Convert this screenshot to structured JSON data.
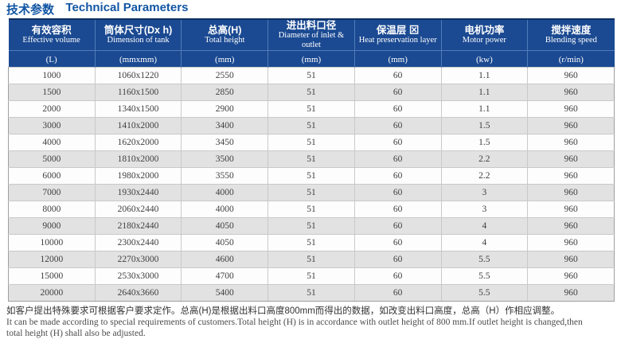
{
  "title": {
    "cn": "技术参数",
    "en": "Technical Parameters"
  },
  "colors": {
    "title_blue": "#1256a4",
    "header_bg": "#1b4a92",
    "header_top_border": "#0d2f62",
    "header_divider": "#4f7cba",
    "row_stripe_gray": "#e2e2e2",
    "row_white": "#fdfdfd",
    "body_border": "#c9c9c9",
    "outer_border": "#9e9e9e",
    "body_text": "#3f3f3f"
  },
  "table": {
    "columns": [
      {
        "cn": "有效容积",
        "en": "Effective volume",
        "unit": "(L)"
      },
      {
        "cn": "筒体尺寸(Dx h)",
        "en": "Dimension of tank",
        "unit": "(mmxmm)"
      },
      {
        "cn": "总高(H)",
        "en": "Total height",
        "unit": "(mm)"
      },
      {
        "cn": "进出料口径",
        "en": "Diameter of inlet & outlet",
        "unit": "(mm)"
      },
      {
        "cn": "保温层 ⊠",
        "en": "Heat preservation layer",
        "unit": "(mm)"
      },
      {
        "cn": "电机功率",
        "en": "Motor power",
        "unit": "(kw)"
      },
      {
        "cn": "搅拌速度",
        "en": "Blending speed",
        "unit": "(r/min)"
      }
    ],
    "rows": [
      [
        "1000",
        "1060x1220",
        "2550",
        "51",
        "60",
        "1.1",
        "960"
      ],
      [
        "1500",
        "1160x1500",
        "2850",
        "51",
        "60",
        "1.1",
        "960"
      ],
      [
        "2000",
        "1340x1500",
        "2900",
        "51",
        "60",
        "1.1",
        "960"
      ],
      [
        "3000",
        "1410x2000",
        "3400",
        "51",
        "60",
        "1.5",
        "960"
      ],
      [
        "4000",
        "1620x2000",
        "3450",
        "51",
        "60",
        "1.5",
        "960"
      ],
      [
        "5000",
        "1810x2000",
        "3500",
        "51",
        "60",
        "2.2",
        "960"
      ],
      [
        "6000",
        "1980x2000",
        "3550",
        "51",
        "60",
        "2.2",
        "960"
      ],
      [
        "7000",
        "1930x2440",
        "4000",
        "51",
        "60",
        "3",
        "960"
      ],
      [
        "8000",
        "2060x2440",
        "4000",
        "51",
        "60",
        "3",
        "960"
      ],
      [
        "9000",
        "2180x2440",
        "4050",
        "51",
        "60",
        "4",
        "960"
      ],
      [
        "10000",
        "2300x2440",
        "4050",
        "51",
        "60",
        "4",
        "960"
      ],
      [
        "12000",
        "2270x3000",
        "4600",
        "51",
        "60",
        "5.5",
        "960"
      ],
      [
        "15000",
        "2530x3000",
        "4700",
        "51",
        "60",
        "5.5",
        "960"
      ],
      [
        "20000",
        "2640x3660",
        "5400",
        "51",
        "60",
        "5.5",
        "960"
      ]
    ]
  },
  "footnote": {
    "cn": "如客户提出特殊要求可根据客户要求定作。总高(H)是根据出料口高度800mm而得出的数据，如改变出料口高度，总高（H）作相应调整。",
    "en_line1": "It can be made according to special requirements of customers.Total height (H) is in accordance with outlet height of 800 mm.If outlet height is changed,then",
    "en_line2": "total height (H) shall also be adjusted."
  }
}
